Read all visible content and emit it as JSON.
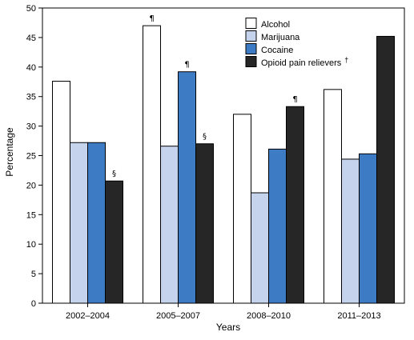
{
  "chart_data": {
    "type": "bar",
    "title": "",
    "xlabel": "Years",
    "ylabel": "Percentage",
    "ylim": [
      0,
      50
    ],
    "yticks": [
      0,
      5,
      10,
      15,
      20,
      25,
      30,
      35,
      40,
      45,
      50
    ],
    "categories": [
      "2002–2004",
      "2005–2007",
      "2008–2010",
      "2011–2013"
    ],
    "legend_position": "top-right",
    "grid": false,
    "series": [
      {
        "name": "Alcohol",
        "color": "#ffffff",
        "values": [
          37.6,
          47.0,
          32.0,
          36.2
        ],
        "annotations": [
          "",
          "¶",
          "",
          ""
        ]
      },
      {
        "name": "Marijuana",
        "color": "#c5d3ec",
        "values": [
          27.2,
          26.6,
          18.7,
          24.4
        ],
        "annotations": [
          "",
          "",
          "",
          ""
        ]
      },
      {
        "name": "Cocaine",
        "color": "#3e7bc5",
        "values": [
          27.2,
          39.2,
          26.1,
          25.3
        ],
        "annotations": [
          "",
          "¶",
          "",
          ""
        ]
      },
      {
        "name": "Opioid pain relievers",
        "name_mark": "†",
        "color": "#262626",
        "values": [
          20.7,
          27.0,
          33.3,
          45.2
        ],
        "annotations": [
          "§",
          "§",
          "¶",
          ""
        ]
      }
    ]
  }
}
